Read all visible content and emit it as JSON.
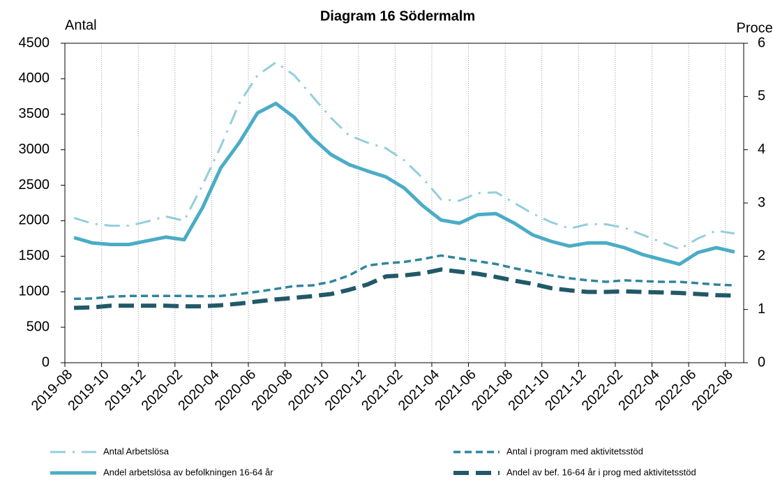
{
  "chart_data": {
    "type": "line",
    "title": "Diagram 16 Södermalm",
    "y_label": "Antal",
    "y2_label": "Procent",
    "categories": [
      "2019-08",
      null,
      "2019-10",
      null,
      "2019-12",
      null,
      "2020-02",
      null,
      "2020-04",
      null,
      "2020-06",
      null,
      "2020-08",
      null,
      "2020-10",
      null,
      "2020-12",
      null,
      "2021-02",
      null,
      "2021-04",
      null,
      "2021-06",
      null,
      "2021-08",
      null,
      "2021-10",
      null,
      "2021-12",
      null,
      "2022-02",
      null,
      "2022-04",
      null,
      "2022-06",
      null,
      "2022-08"
    ],
    "ylim": [
      0,
      4500
    ],
    "yticks": [
      0,
      500,
      1000,
      1500,
      2000,
      2500,
      3000,
      3500,
      4000,
      4500
    ],
    "y2lim": [
      0,
      6
    ],
    "y2ticks": [
      0,
      1,
      2,
      3,
      4,
      5,
      6
    ],
    "grid": true,
    "legend": "bottom",
    "series": [
      {
        "name": "Antal Arbetslösa",
        "color": "#93cddd",
        "linestyle": "dashdot",
        "axis": "y",
        "values": [
          2040,
          1960,
          1930,
          1930,
          1990,
          2060,
          2000,
          2500,
          3050,
          3650,
          4050,
          4230,
          4050,
          3750,
          3450,
          3200,
          3100,
          3020,
          2850,
          2600,
          2300,
          2280,
          2390,
          2400,
          2250,
          2100,
          1980,
          1890,
          1950,
          1950,
          1900,
          1800,
          1700,
          1600,
          1750,
          1860,
          1820
        ]
      },
      {
        "name": "Antal i program med aktivitetsstöd",
        "color": "#31859c",
        "linestyle": "dashed",
        "axis": "y",
        "values": [
          900,
          905,
          930,
          940,
          940,
          940,
          940,
          935,
          940,
          970,
          1000,
          1040,
          1080,
          1090,
          1140,
          1230,
          1370,
          1400,
          1420,
          1460,
          1510,
          1470,
          1430,
          1390,
          1330,
          1280,
          1230,
          1190,
          1160,
          1140,
          1160,
          1150,
          1140,
          1140,
          1120,
          1100,
          1090
        ]
      },
      {
        "name": "Andel arbetslösa av befolkningen 16-64 år",
        "color": "#4bacc6",
        "linestyle": "solid",
        "axis": "y2",
        "values": [
          2.35,
          2.25,
          2.22,
          2.22,
          2.29,
          2.36,
          2.31,
          2.91,
          3.66,
          4.13,
          4.69,
          4.87,
          4.61,
          4.22,
          3.91,
          3.72,
          3.6,
          3.49,
          3.28,
          2.95,
          2.68,
          2.62,
          2.78,
          2.8,
          2.62,
          2.4,
          2.28,
          2.19,
          2.25,
          2.25,
          2.16,
          2.03,
          1.94,
          1.85,
          2.07,
          2.16,
          2.08
        ]
      },
      {
        "name": "Andel av bef. 16-64 år i prog med aktivitetsstöd",
        "color": "#215968",
        "linestyle": "longdash",
        "axis": "y2",
        "values": [
          1.03,
          1.04,
          1.07,
          1.07,
          1.07,
          1.07,
          1.06,
          1.06,
          1.08,
          1.11,
          1.15,
          1.19,
          1.22,
          1.25,
          1.29,
          1.37,
          1.47,
          1.62,
          1.64,
          1.68,
          1.75,
          1.71,
          1.67,
          1.61,
          1.54,
          1.48,
          1.4,
          1.36,
          1.33,
          1.33,
          1.34,
          1.33,
          1.32,
          1.31,
          1.29,
          1.27,
          1.26
        ]
      }
    ]
  }
}
